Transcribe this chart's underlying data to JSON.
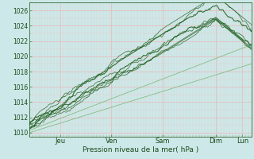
{
  "xlabel": "Pression niveau de la mer( hPa )",
  "ylim": [
    1009.5,
    1027
  ],
  "xlim": [
    0,
    1
  ],
  "yticks": [
    1010,
    1012,
    1014,
    1016,
    1018,
    1020,
    1022,
    1024,
    1026
  ],
  "xtick_pos": [
    0.14,
    0.37,
    0.6,
    0.84,
    0.96
  ],
  "xtick_labs": [
    "Jeu",
    "Ven",
    "Sam",
    "Dim",
    "Lun"
  ],
  "bg_color": "#cce8e8",
  "grid_major_color": "#e8b8b8",
  "grid_minor_color": "#e8cccc",
  "line_dark": "#1a5c1a",
  "line_medium": "#2e7c2e",
  "line_light": "#5aaa5a",
  "line_thin": "#7aba7a",
  "n_points": 300,
  "seed": 12
}
